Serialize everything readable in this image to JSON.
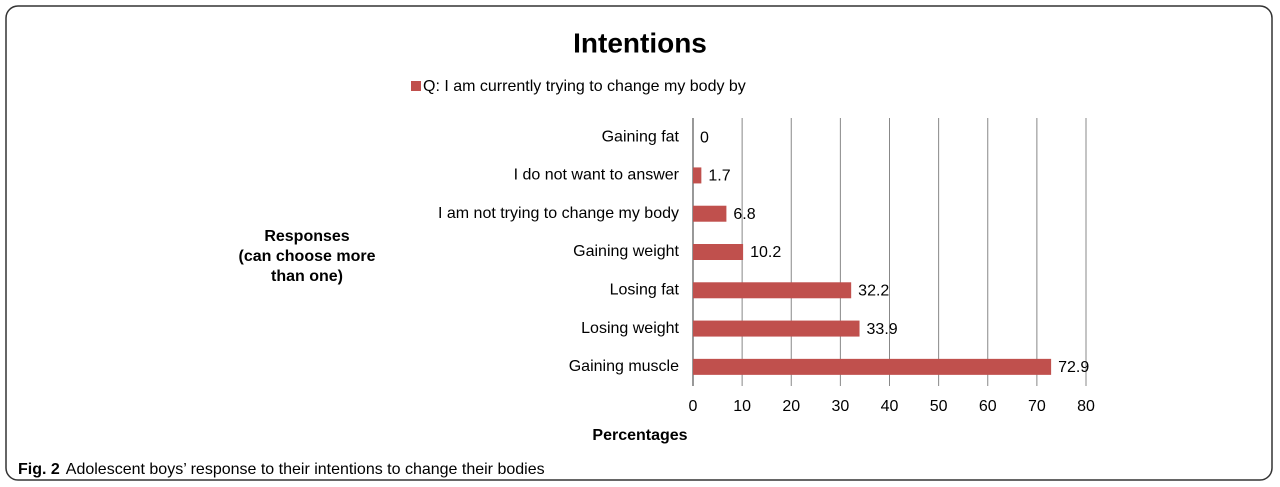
{
  "chart_data": {
    "type": "bar",
    "orientation": "horizontal",
    "title": "Intentions",
    "legend": "Q: I am currently trying to change my body by",
    "categories": [
      "Gaining fat",
      "I do not want to answer",
      "I am not trying to change my body",
      "Gaining weight",
      "Losing fat",
      "Losing weight",
      "Gaining muscle"
    ],
    "values": [
      0,
      1.7,
      6.8,
      10.2,
      32.2,
      33.9,
      72.9
    ],
    "color": "#c0504d",
    "xlim": [
      0,
      80
    ],
    "xticks": [
      0,
      10,
      20,
      30,
      40,
      50,
      60,
      70,
      80
    ],
    "xlabel": "Percentages",
    "ylabel": [
      "Responses",
      "(can choose more",
      "than one)"
    ],
    "grid": true
  },
  "caption": {
    "label": "Fig. 2",
    "text": "Adolescent boys’ response to their intentions to change their bodies"
  }
}
